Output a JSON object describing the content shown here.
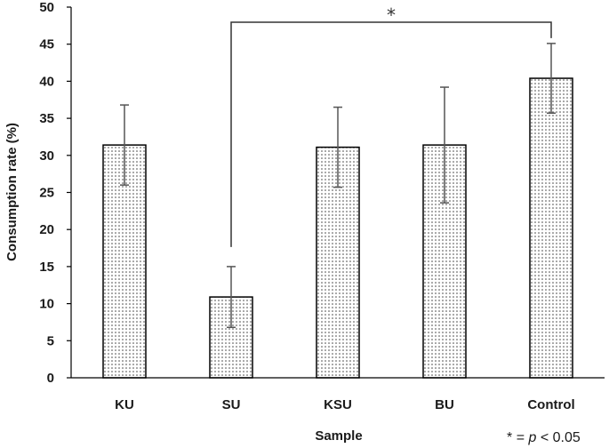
{
  "chart_data": {
    "type": "bar",
    "title": "",
    "xlabel": "Sample",
    "ylabel": "Consumption rate (%)",
    "categories": [
      "KU",
      "SU",
      "KSU",
      "BU",
      "Control"
    ],
    "values": [
      31.4,
      10.9,
      31.1,
      31.4,
      40.4
    ],
    "error": [
      5.4,
      4.1,
      5.4,
      7.8,
      4.7
    ],
    "ylim": [
      0,
      50
    ],
    "yticks": [
      0,
      5,
      10,
      15,
      20,
      25,
      30,
      35,
      40,
      45,
      50
    ],
    "grid": false,
    "bar_pattern": "dotted",
    "significance": {
      "from": "SU",
      "to": "Control",
      "label": "*"
    },
    "footnote": {
      "star": "*",
      "eq": " = ",
      "p": "p",
      "rest": " < 0.05"
    }
  }
}
